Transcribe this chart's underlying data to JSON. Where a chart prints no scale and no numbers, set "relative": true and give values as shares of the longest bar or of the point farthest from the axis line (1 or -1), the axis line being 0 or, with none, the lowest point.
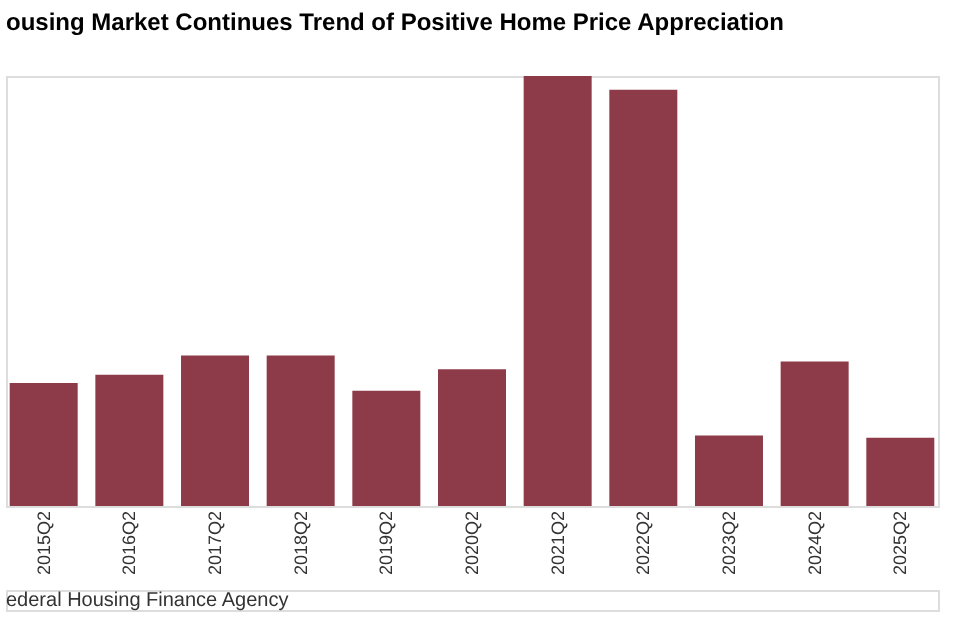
{
  "chart_data": {
    "type": "bar",
    "title": "ousing Market Continues Trend of Positive Home Price Appreciation",
    "categories": [
      "2015Q2",
      "2016Q2",
      "2017Q2",
      "2018Q2",
      "2019Q2",
      "2020Q2",
      "2021Q2",
      "2022Q2",
      "2023Q2",
      "2024Q2",
      "2025Q2"
    ],
    "values": [
      0.286,
      0.305,
      0.35,
      0.35,
      0.268,
      0.318,
      1,
      0.968,
      0.164,
      0.336,
      0.159
    ],
    "color": "#8e3b49",
    "relative": true,
    "grid": false,
    "annotations": [
      "ederal Housing Finance Agency"
    ]
  }
}
